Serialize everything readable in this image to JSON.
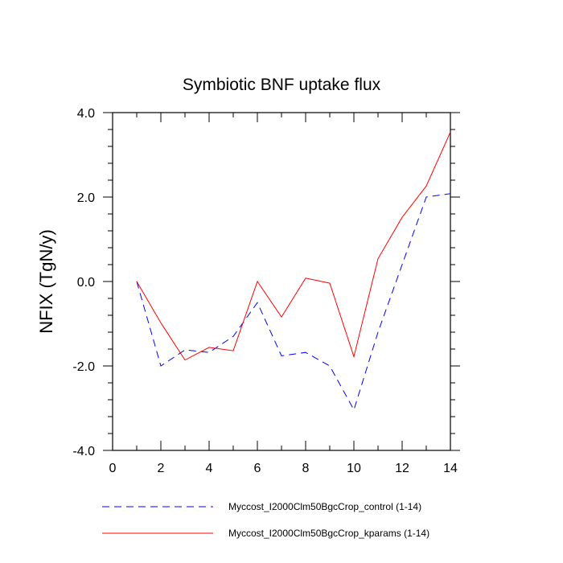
{
  "chart_data": {
    "type": "line",
    "title": "Symbiotic BNF uptake flux",
    "xlabel": "",
    "ylabel": "NFIX  (TgN/y)",
    "xlim": [
      0,
      14
    ],
    "ylim": [
      -4.0,
      4.0
    ],
    "x_ticks": [
      0,
      2,
      4,
      6,
      8,
      10,
      12,
      14
    ],
    "x_tick_labels": [
      "0",
      "2",
      "4",
      "6",
      "8",
      "10",
      "12",
      "14"
    ],
    "y_ticks": [
      -4.0,
      -2.0,
      0.0,
      2.0,
      4.0
    ],
    "y_tick_labels": [
      "-4.0",
      "-2.0",
      "0.0",
      "2.0",
      "4.0"
    ],
    "grid": false,
    "legend_position": "bottom",
    "x": [
      1,
      2,
      3,
      4,
      5,
      6,
      7,
      8,
      9,
      10,
      11,
      12,
      13,
      14
    ],
    "series": [
      {
        "name": "Myccost_I2000Clm50BgcCrop_control (1-14)",
        "color": "#0000ff",
        "dash": "dashed",
        "values": [
          0.0,
          -2.0,
          -1.62,
          -1.68,
          -1.3,
          -0.5,
          -1.76,
          -1.68,
          -2.0,
          -3.04,
          -1.2,
          0.4,
          2.0,
          2.08
        ]
      },
      {
        "name": "Myccost_I2000Clm50BgcCrop_kparams (1-14)",
        "color": "#ff0000",
        "dash": "solid",
        "values": [
          0.0,
          -0.98,
          -1.86,
          -1.56,
          -1.64,
          0.0,
          -0.84,
          0.08,
          -0.04,
          -1.78,
          0.54,
          1.52,
          2.26,
          3.54
        ]
      }
    ]
  }
}
